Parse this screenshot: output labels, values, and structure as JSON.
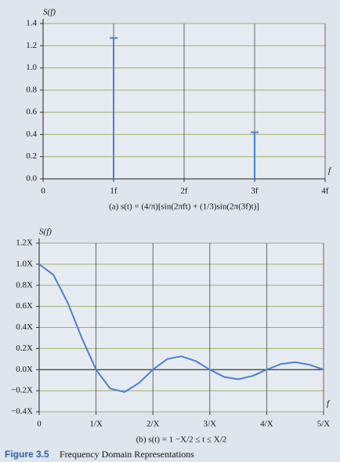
{
  "chart_data": [
    {
      "type": "stem",
      "y_label": "S(f)",
      "x_label": "f",
      "caption": "(a) s(t) = (4/π)[sin(2πft) + (1/3)sin(2π(3f)t)]",
      "x": [
        1,
        3
      ],
      "values": [
        1.27,
        0.42
      ],
      "color": "#4a7fd0",
      "xlim": [
        0,
        4
      ],
      "xticks": [
        0,
        {
          "value": 1,
          "label": "1f"
        },
        {
          "value": 2,
          "label": "2f"
        },
        {
          "value": 3,
          "label": "3f"
        },
        {
          "value": 4,
          "label": "4f"
        }
      ],
      "ylim": [
        0,
        1.4
      ],
      "yticks": [
        {
          "value": 0,
          "label": "0.0"
        },
        0.2,
        0.4,
        0.6,
        0.8,
        {
          "value": 1,
          "label": "1.0"
        },
        1.2,
        1.4
      ],
      "grid": true
    },
    {
      "type": "line",
      "y_label": "S(f)",
      "x_label": "f",
      "caption": "(b) s(t) = 1     −X/2 ≤ t ≤ X/2",
      "x": [
        0,
        0.25,
        0.5,
        0.75,
        1,
        1.25,
        1.5,
        1.75,
        2,
        2.25,
        2.5,
        2.75,
        3,
        3.25,
        3.5,
        3.75,
        4,
        4.25,
        4.5,
        4.75,
        5
      ],
      "values": [
        1,
        0.9,
        0.637,
        0.3,
        0,
        -0.18,
        -0.212,
        -0.129,
        0,
        0.1,
        0.127,
        0.082,
        0,
        -0.069,
        -0.091,
        -0.06,
        0,
        0.053,
        0.071,
        0.047,
        0
      ],
      "color": "#4a7fd0",
      "xlim": [
        0,
        5
      ],
      "xticks": [
        0,
        {
          "value": 1,
          "label": "1/X"
        },
        {
          "value": 2,
          "label": "2/X"
        },
        {
          "value": 3,
          "label": "3/X"
        },
        {
          "value": 4,
          "label": "4/X"
        },
        {
          "value": 5,
          "label": "5/X"
        }
      ],
      "ylim": [
        -0.4,
        1.2
      ],
      "yticks": [
        {
          "value": -0.4,
          "label": "−0.4X"
        },
        {
          "value": -0.2,
          "label": "−0.2X"
        },
        {
          "value": 0,
          "label": "0.0X"
        },
        {
          "value": 0.2,
          "label": "0.2X"
        },
        {
          "value": 0.4,
          "label": "0.4X"
        },
        {
          "value": 0.6,
          "label": "0.6X"
        },
        {
          "value": 0.8,
          "label": "0.8X"
        },
        {
          "value": 1,
          "label": "1.0X"
        },
        {
          "value": 1.2,
          "label": "1.2X"
        }
      ],
      "grid": true
    }
  ],
  "figure_caption": {
    "label": "Figure 3.5",
    "text": "Frequency Domain Representations"
  }
}
